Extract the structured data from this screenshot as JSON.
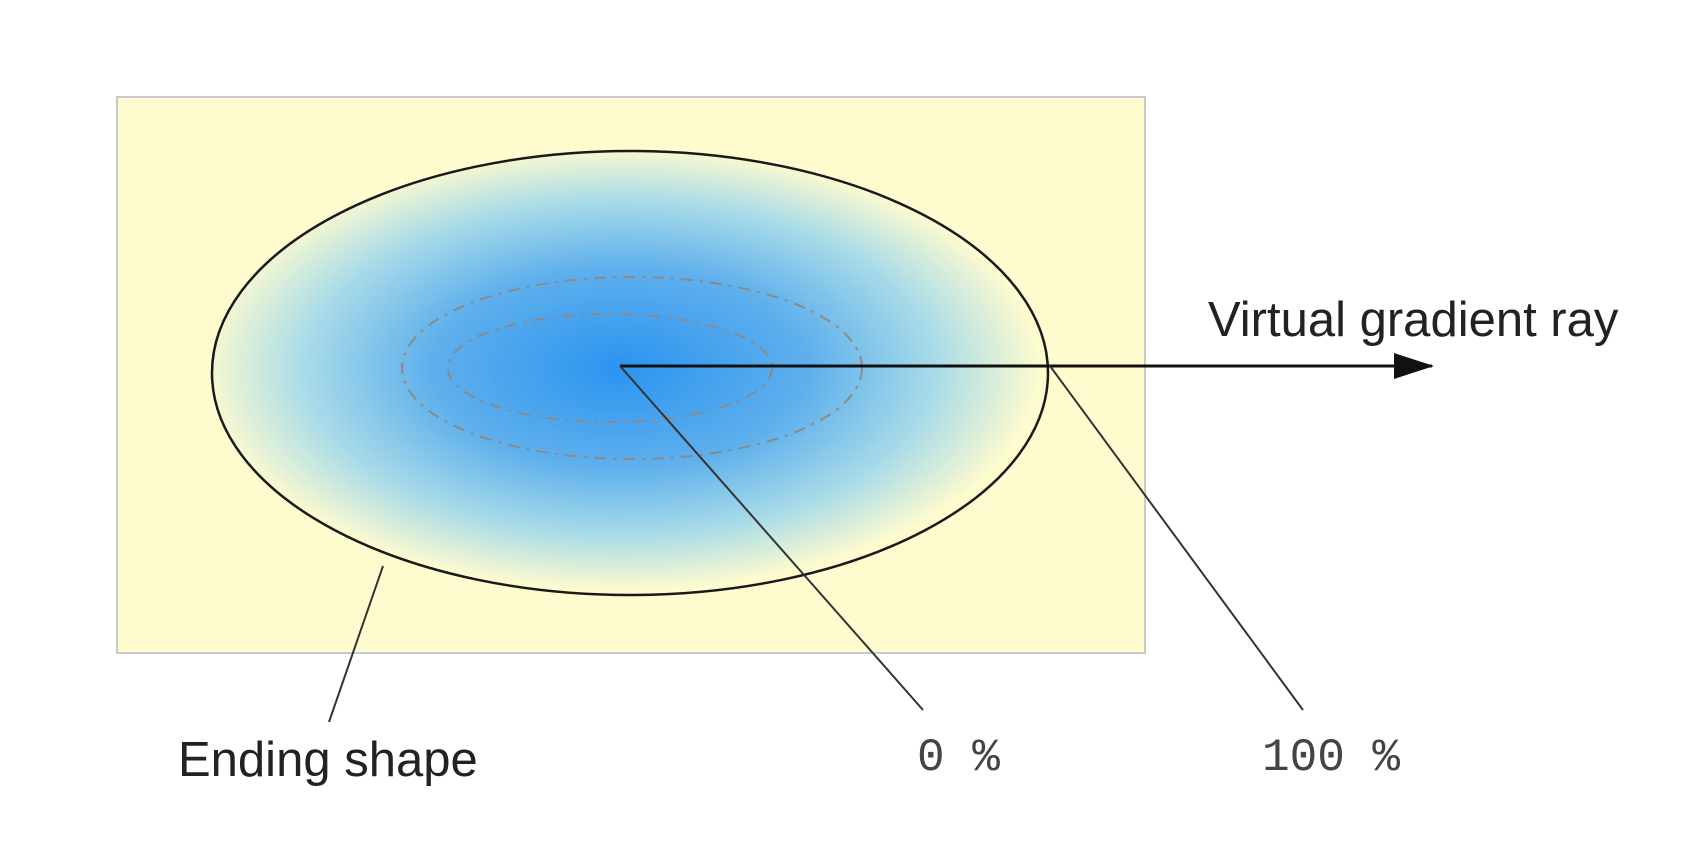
{
  "diagram": {
    "labels": {
      "ray": "Virtual gradient ray",
      "ending_shape": "Ending shape",
      "start_percent": "0 %",
      "end_percent": "100 %"
    },
    "colors": {
      "box_background": "#fefbcf",
      "box_border": "#c9c9c9",
      "gradient_center": "#2b94f0",
      "gradient_mid": "#87c9ec",
      "gradient_edge": "#fefbcf",
      "outline": "#1a1a1a",
      "dashed_ellipse": "#8a8a8a"
    }
  }
}
